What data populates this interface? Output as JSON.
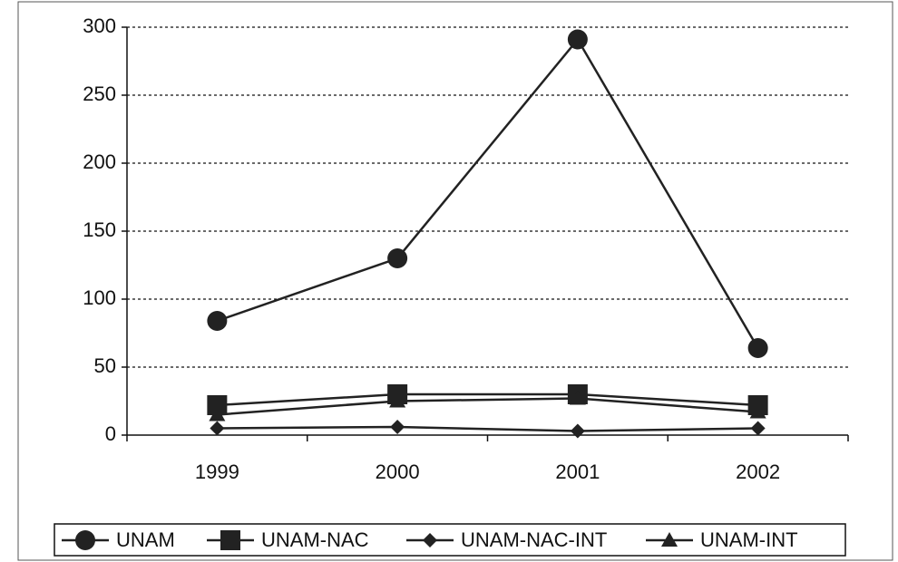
{
  "chart_data": {
    "type": "line",
    "categories": [
      "1999",
      "2000",
      "2001",
      "2002"
    ],
    "series": [
      {
        "name": "UNAM",
        "color": "#222222",
        "marker": "circle",
        "values": [
          84,
          130,
          291,
          64
        ]
      },
      {
        "name": "UNAM-NAC",
        "color": "#222222",
        "marker": "square",
        "values": [
          22,
          30,
          30,
          22
        ]
      },
      {
        "name": "UNAM-NAC-INT",
        "color": "#222222",
        "marker": "diamond",
        "values": [
          5,
          6,
          3,
          5
        ]
      },
      {
        "name": "UNAM-INT",
        "color": "#222222",
        "marker": "triangle",
        "values": [
          15,
          25,
          27,
          17
        ]
      }
    ],
    "ylim": [
      0,
      300
    ],
    "yticks": [
      0,
      50,
      100,
      150,
      200,
      250,
      300
    ],
    "grid": true,
    "legend": "bottom"
  }
}
